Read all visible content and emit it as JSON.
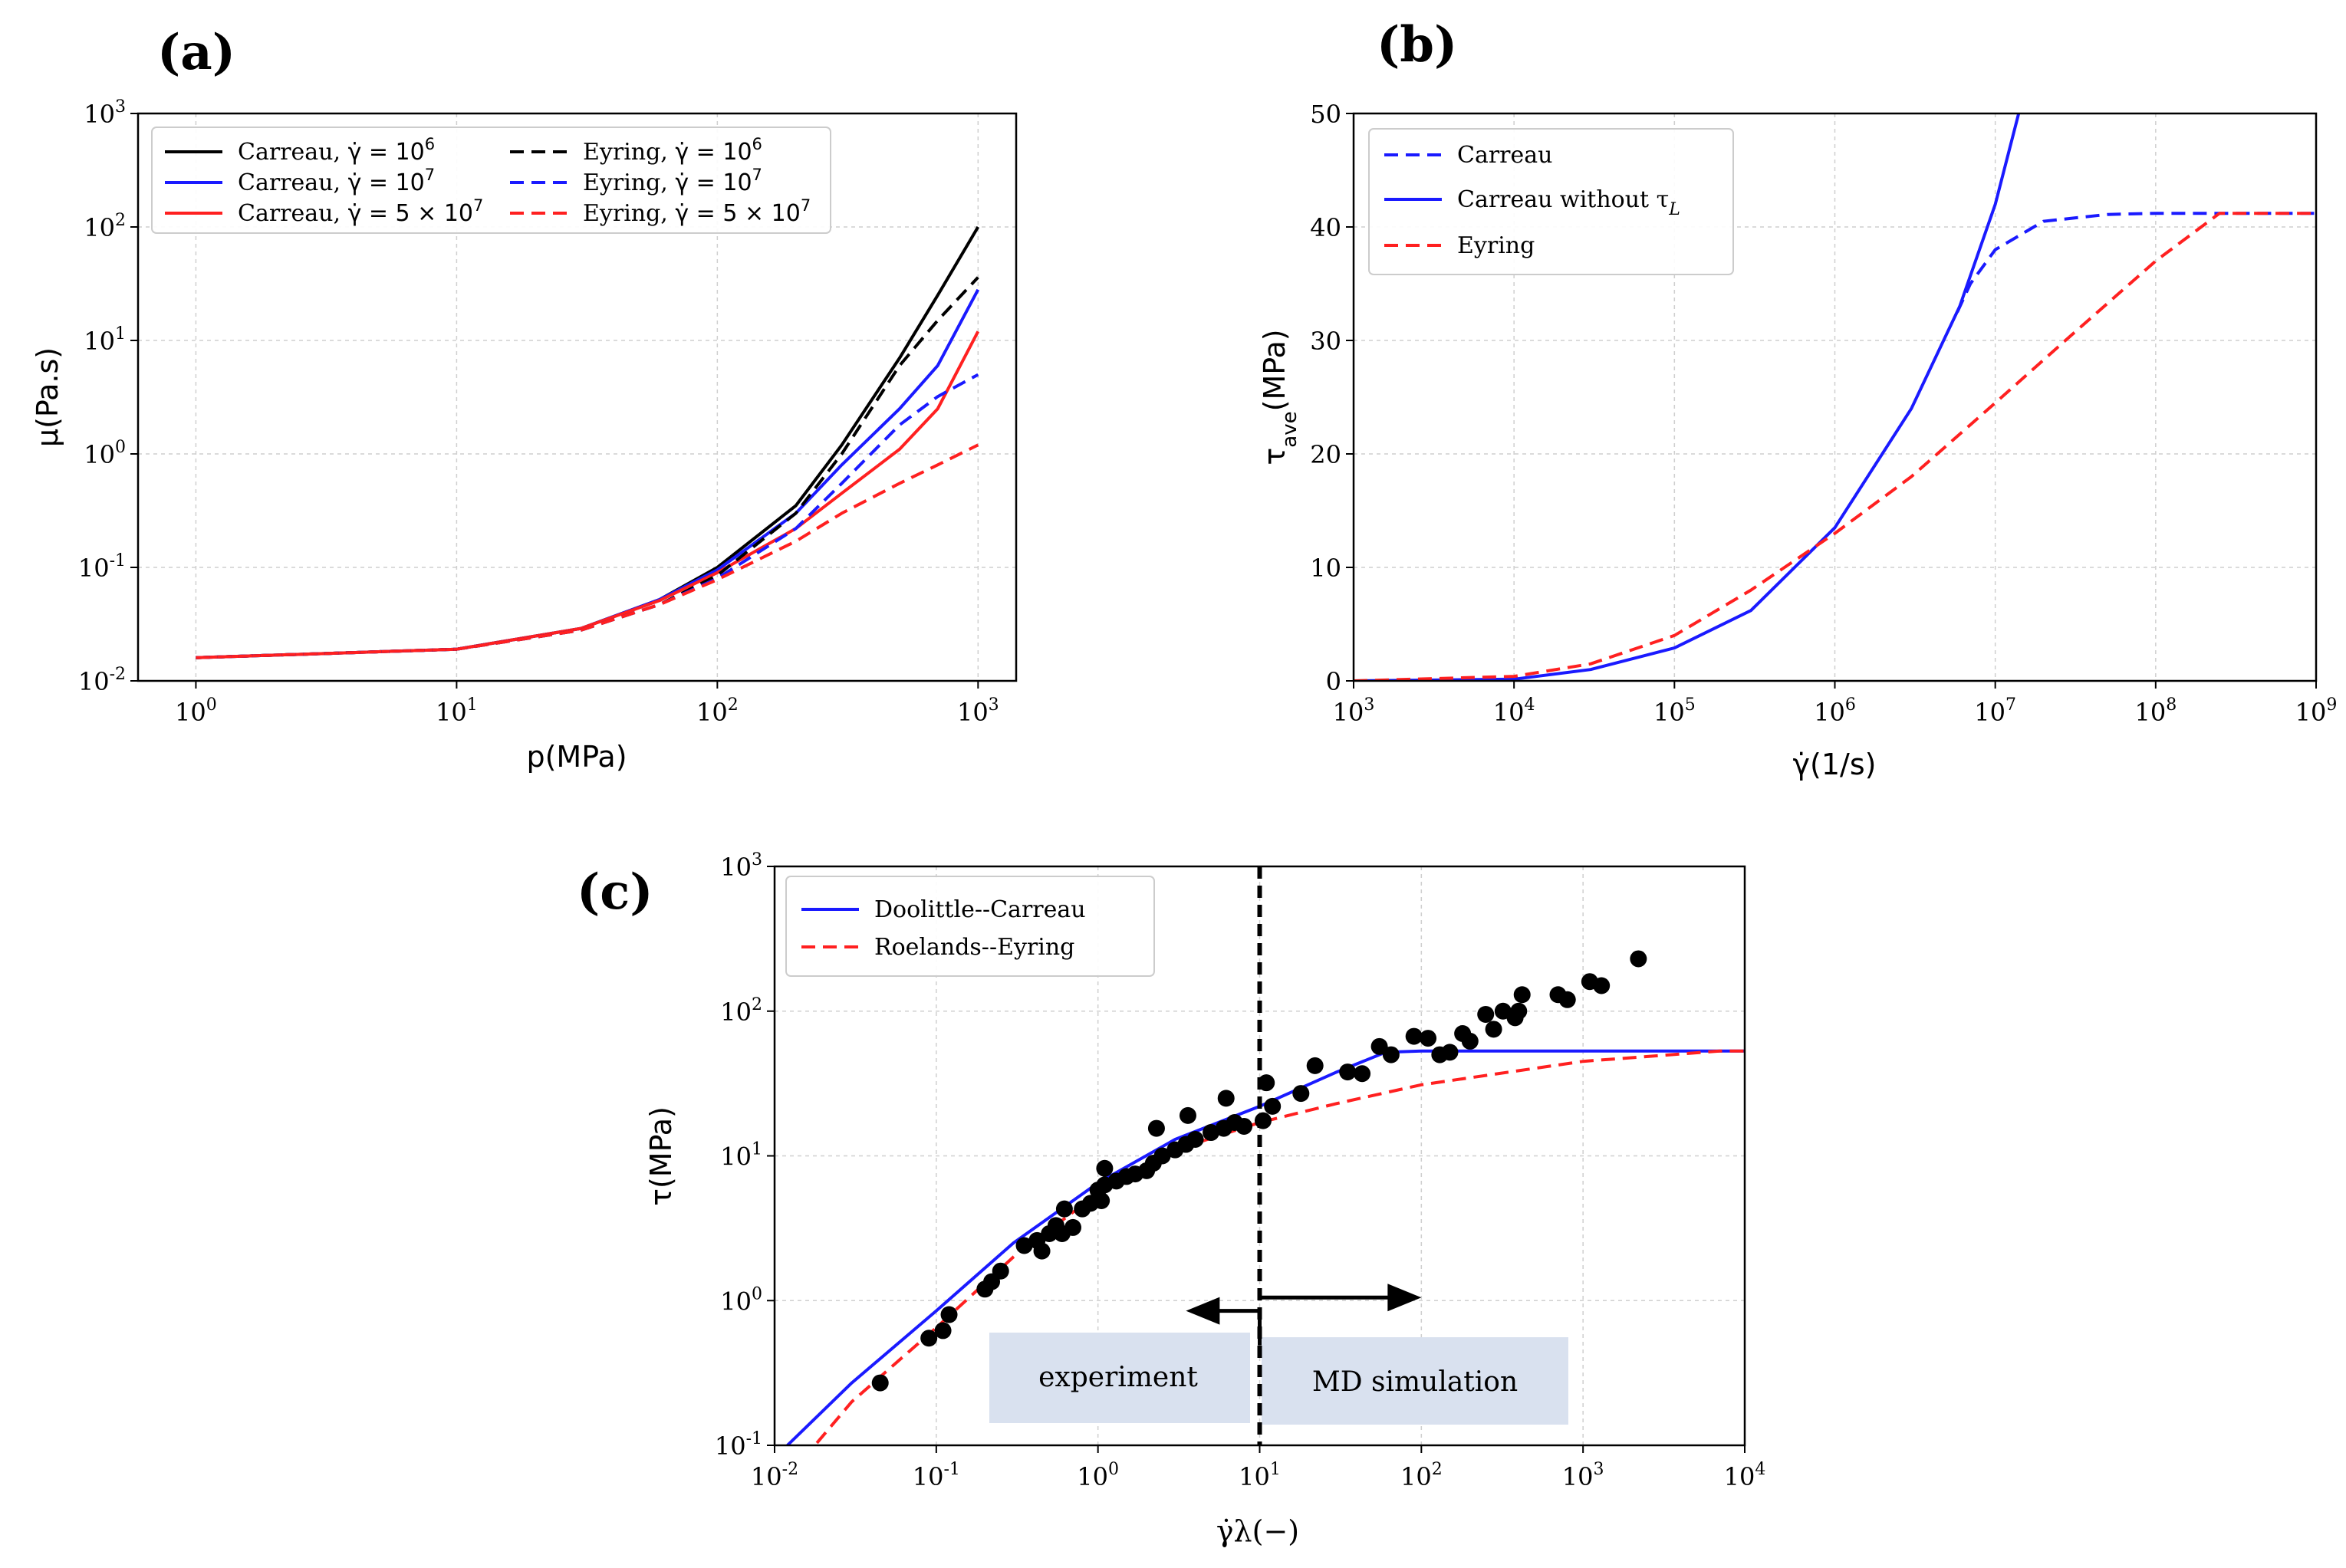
{
  "figure": {
    "panels": {
      "a": "(a)",
      "b": "(b)",
      "c": "(c)"
    }
  },
  "chart_data": [
    {
      "id": "a",
      "type": "line",
      "xscale": "log",
      "yscale": "log",
      "xlabel": "p(MPa)",
      "ylabel": "μ(Pa.s)",
      "xlim": [
        0.6,
        1400
      ],
      "ylim": [
        0.01,
        1000
      ],
      "xticks": [
        1,
        10,
        100,
        1000
      ],
      "yticks": [
        0.01,
        0.1,
        1,
        10,
        100,
        1000
      ],
      "xtick_labels": [
        "10^0",
        "10^1",
        "10^2",
        "10^3"
      ],
      "ytick_labels": [
        "10^-2",
        "10^-1",
        "10^0",
        "10^1",
        "10^2",
        "10^3"
      ],
      "grid": true,
      "legend_position": "top-left",
      "series": [
        {
          "name": "Carreau, γ̇ = 10^6",
          "label_main": "Carreau, ",
          "label_math": "γ̇ = 10",
          "label_sup": "6",
          "color": "#000000",
          "dash": "solid",
          "x": [
            1,
            10,
            30,
            60,
            100,
            200,
            300,
            500,
            700,
            1000
          ],
          "y": [
            0.016,
            0.019,
            0.029,
            0.052,
            0.1,
            0.35,
            1.2,
            7,
            25,
            100
          ]
        },
        {
          "name": "Carreau, γ̇ = 10^7",
          "label_main": "Carreau, ",
          "label_math": "γ̇ = 10",
          "label_sup": "7",
          "color": "#1a1aff",
          "dash": "solid",
          "x": [
            1,
            10,
            30,
            60,
            100,
            200,
            300,
            500,
            700,
            1000
          ],
          "y": [
            0.016,
            0.019,
            0.029,
            0.052,
            0.095,
            0.3,
            0.8,
            2.5,
            6,
            28
          ]
        },
        {
          "name": "Carreau, γ̇ = 5×10^7",
          "label_main": "Carreau, ",
          "label_math": "γ̇ = 5 × 10",
          "label_sup": "7",
          "color": "#ff2020",
          "dash": "solid",
          "x": [
            1,
            10,
            30,
            60,
            100,
            200,
            300,
            500,
            700,
            1000
          ],
          "y": [
            0.016,
            0.019,
            0.029,
            0.051,
            0.09,
            0.22,
            0.45,
            1.1,
            2.5,
            12
          ]
        },
        {
          "name": "Eyring, γ̇ = 10^6",
          "label_main": "Eyring, ",
          "label_math": "γ̇ = 10",
          "label_sup": "6",
          "color": "#000000",
          "dash": "dashed",
          "x": [
            1,
            10,
            30,
            60,
            100,
            200,
            300,
            500,
            700,
            1000
          ],
          "y": [
            0.016,
            0.019,
            0.028,
            0.047,
            0.085,
            0.3,
            1,
            6,
            15,
            36
          ]
        },
        {
          "name": "Eyring, γ̇ = 10^7",
          "label_main": "Eyring, ",
          "label_math": "γ̇ = 10",
          "label_sup": "7",
          "color": "#1a1aff",
          "dash": "dashed",
          "x": [
            1,
            10,
            30,
            60,
            100,
            200,
            300,
            500,
            700,
            1000
          ],
          "y": [
            0.016,
            0.019,
            0.028,
            0.047,
            0.08,
            0.22,
            0.55,
            1.8,
            3.2,
            5
          ]
        },
        {
          "name": "Eyring, γ̇ = 5×10^7",
          "label_main": "Eyring, ",
          "label_math": "γ̇ = 5 × 10",
          "label_sup": "7",
          "color": "#ff2020",
          "dash": "dashed",
          "x": [
            1,
            10,
            30,
            60,
            100,
            200,
            300,
            500,
            700,
            1000
          ],
          "y": [
            0.016,
            0.019,
            0.028,
            0.047,
            0.078,
            0.17,
            0.3,
            0.55,
            0.8,
            1.2
          ]
        }
      ]
    },
    {
      "id": "b",
      "type": "line",
      "xscale": "log",
      "yscale": "linear",
      "xlabel": "γ̇(1/s)",
      "ylabel": "τave(MPa)",
      "ylabel_main": "τ",
      "ylabel_sub": "ave",
      "ylabel_tail": "(MPa)",
      "xlim": [
        1000,
        1000000000
      ],
      "ylim": [
        0,
        50
      ],
      "xticks": [
        1000,
        10000,
        100000,
        1000000,
        10000000,
        100000000,
        1000000000
      ],
      "yticks": [
        0,
        10,
        20,
        30,
        40,
        50
      ],
      "xtick_labels": [
        "10^3",
        "10^4",
        "10^5",
        "10^6",
        "10^7",
        "10^8",
        "10^9"
      ],
      "ytick_labels": [
        "0",
        "10",
        "20",
        "30",
        "40",
        "50"
      ],
      "grid": true,
      "legend_position": "top-left",
      "series": [
        {
          "name": "Carreau",
          "label_main": "Carreau",
          "color": "#1a1aff",
          "dash": "dashed",
          "x": [
            5800000,
            7000000,
            10000000,
            20000000,
            50000000,
            100000000,
            300000000,
            1000000000
          ],
          "y": [
            32.5,
            35,
            38,
            40.5,
            41.1,
            41.2,
            41.2,
            41.2
          ]
        },
        {
          "name": "Carreau without τL",
          "label_main": "Carreau without τ",
          "label_sub": "L",
          "color": "#1a1aff",
          "dash": "solid",
          "x": [
            1000,
            10000,
            30000,
            100000,
            300000,
            1000000,
            3000000,
            6000000,
            10000000,
            14000000
          ],
          "y": [
            0,
            0.15,
            1,
            2.9,
            6.2,
            13.5,
            24,
            33,
            42,
            50
          ]
        },
        {
          "name": "Eyring",
          "label_main": "Eyring",
          "color": "#ff2020",
          "dash": "dashed",
          "x": [
            1000,
            10000,
            30000,
            100000,
            300000,
            1000000,
            3000000,
            10000000,
            30000000,
            100000000,
            250000000,
            1000000000
          ],
          "y": [
            0,
            0.4,
            1.5,
            4,
            8,
            13,
            18,
            24.5,
            30.5,
            37,
            41.2,
            41.2
          ]
        }
      ]
    },
    {
      "id": "c",
      "type": "scatter",
      "xscale": "log",
      "yscale": "log",
      "xlabel": "γ̇λ(−)",
      "ylabel": "τ(MPa)",
      "xlim": [
        0.01,
        10000
      ],
      "ylim": [
        0.1,
        1000
      ],
      "xticks": [
        0.01,
        0.1,
        1,
        10,
        100,
        1000,
        10000
      ],
      "yticks": [
        0.1,
        1,
        10,
        100,
        1000
      ],
      "xtick_labels": [
        "10^-2",
        "10^-1",
        "10^0",
        "10^1",
        "10^2",
        "10^3",
        "10^4"
      ],
      "ytick_labels": [
        "10^-1",
        "10^0",
        "10^1",
        "10^2",
        "10^3"
      ],
      "grid": true,
      "legend_position": "top-left",
      "series": [
        {
          "name": "Doolittle--Carreau",
          "label_main": "Doolittle--Carreau",
          "color": "#1a1aff",
          "dash": "solid",
          "x": [
            0.012,
            0.03,
            0.1,
            0.3,
            1,
            3,
            10,
            30,
            60,
            100,
            1000,
            10000
          ],
          "y": [
            0.1,
            0.27,
            0.85,
            2.5,
            6.5,
            13,
            22,
            38,
            52,
            53,
            53,
            53
          ]
        },
        {
          "name": "Roelands--Eyring",
          "label_main": "Roelands--Eyring",
          "color": "#ff2020",
          "dash": "dashed",
          "x": [
            0.015,
            0.03,
            0.1,
            0.3,
            1,
            3,
            10,
            30,
            100,
            1000,
            7000,
            10000
          ],
          "y": [
            0.08,
            0.2,
            0.65,
            2,
            5.5,
            11,
            17,
            23,
            31,
            45,
            53,
            53
          ]
        },
        {
          "name": "data",
          "color": "#000000",
          "marker": "circle",
          "x": [
            0.045,
            0.09,
            0.11,
            0.12,
            0.2,
            0.22,
            0.25,
            0.35,
            0.42,
            0.45,
            0.5,
            0.55,
            0.6,
            0.62,
            0.7,
            0.8,
            0.9,
            1.0,
            1.05,
            1.1,
            1.3,
            1.5,
            1.7,
            2.0,
            2.2,
            2.5,
            3.0,
            3.5,
            4.0,
            5.0,
            6.0,
            7.0,
            8.0,
            1.1,
            2.3,
            3.6,
            6.2,
            10.5,
            11,
            12,
            18,
            22,
            35,
            43,
            55,
            65,
            90,
            110,
            130,
            150,
            180,
            200,
            250,
            280,
            320,
            380,
            400,
            420,
            700,
            800,
            1100,
            1300,
            2200
          ],
          "y": [
            0.27,
            0.55,
            0.62,
            0.8,
            1.2,
            1.35,
            1.6,
            2.4,
            2.6,
            2.2,
            2.9,
            3.3,
            2.9,
            4.3,
            3.2,
            4.3,
            4.7,
            5.8,
            4.9,
            6.3,
            6.7,
            7.2,
            7.5,
            7.9,
            8.9,
            10.0,
            11.0,
            12.0,
            13.0,
            14.5,
            15.5,
            17.0,
            16.0,
            8.2,
            15.5,
            19.0,
            25.0,
            17.5,
            32.0,
            22.0,
            27.0,
            42.0,
            38.0,
            37.0,
            57.0,
            50.0,
            67.0,
            65.0,
            50.0,
            52.0,
            70.0,
            62.0,
            95.0,
            75.0,
            100.0,
            90.0,
            100.0,
            130.0,
            130.0,
            120.0,
            160.0,
            150.0,
            230.0
          ]
        }
      ],
      "annotations": {
        "divider_x": 10,
        "arrow_left": {
          "from": 10,
          "to": 3.5,
          "y": 0.85
        },
        "arrow_right": {
          "from": 10,
          "to": 100,
          "y": 1.05
        },
        "box_experiment": "experiment",
        "box_md": "MD simulation"
      }
    }
  ],
  "colors": {
    "blue": "#1a1aff",
    "red": "#ff2020",
    "black": "#000000",
    "box_fill": "#d9e1ef"
  }
}
